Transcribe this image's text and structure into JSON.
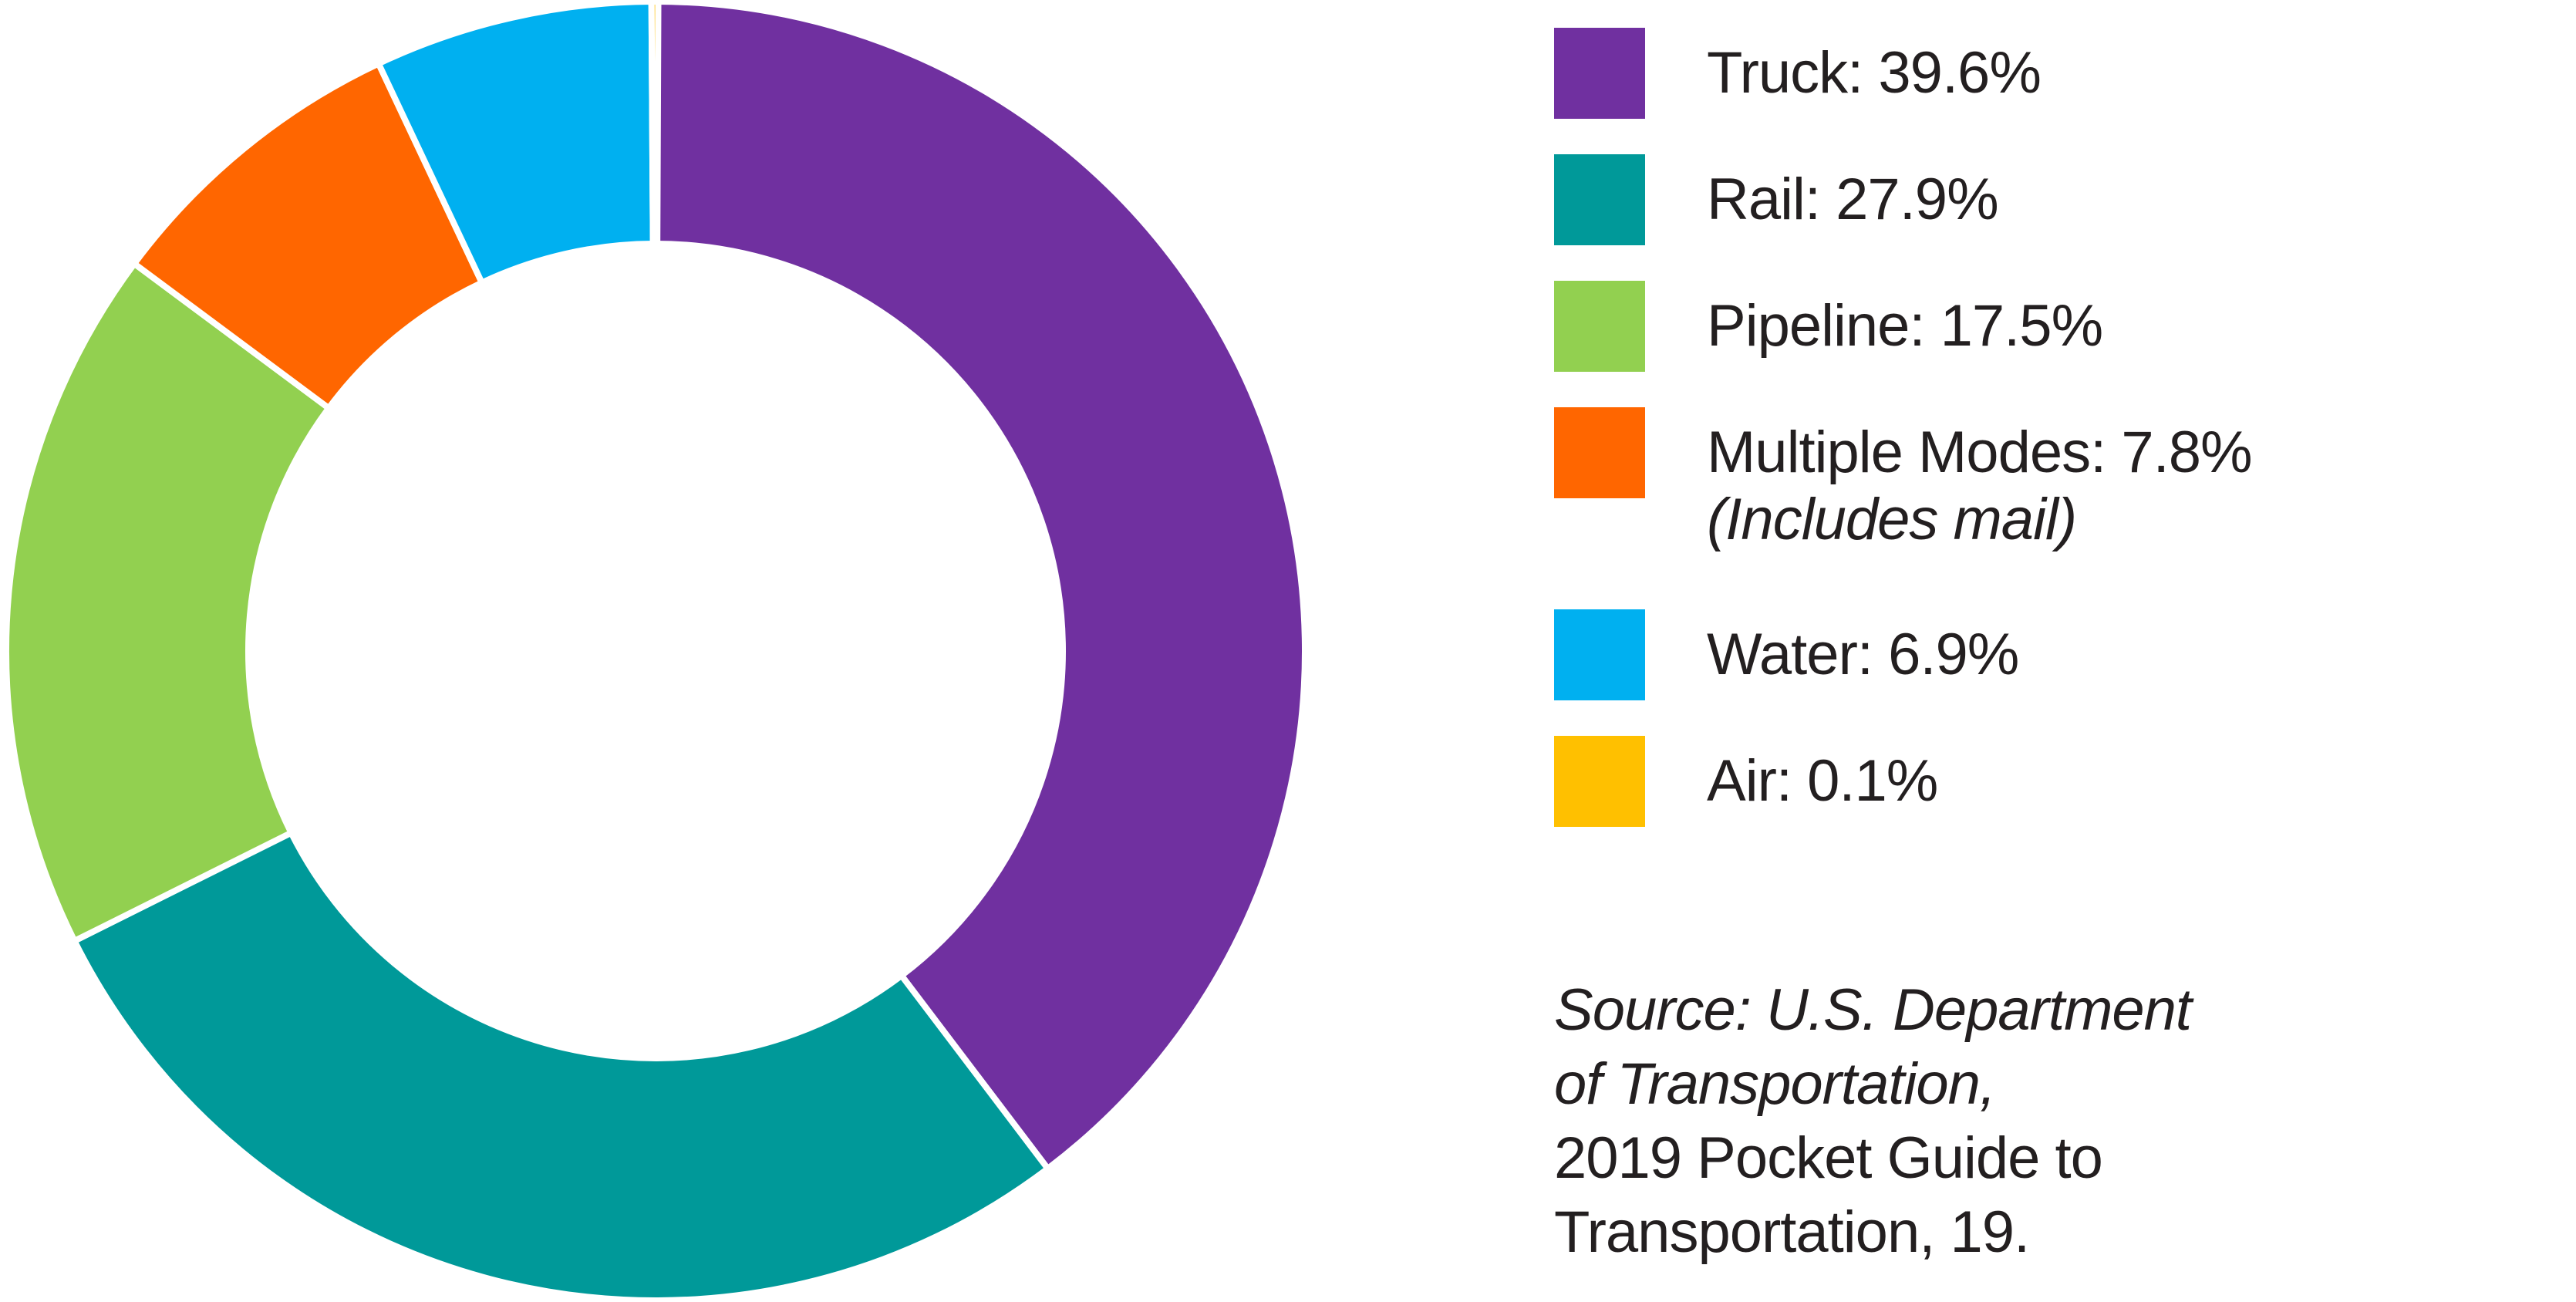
{
  "chart_data": {
    "type": "pie",
    "variant": "donut",
    "title": "",
    "categories": [
      "Truck",
      "Rail",
      "Pipeline",
      "Multiple Modes",
      "Water",
      "Air"
    ],
    "values": [
      39.6,
      27.9,
      17.5,
      7.8,
      6.9,
      0.1
    ],
    "unit": "%",
    "colors": [
      "#7030a0",
      "#009999",
      "#92d050",
      "#ff6600",
      "#00b0f0",
      "#ffc000"
    ],
    "start_angle_deg": 0,
    "direction": "clockwise",
    "legend_position": "right",
    "notes": {
      "Multiple Modes": "(Includes mail)"
    }
  },
  "legend": {
    "items": [
      {
        "label": "Truck: 39.6%",
        "color": "#7030a0"
      },
      {
        "label": "Rail: 27.9%",
        "color": "#009999"
      },
      {
        "label": "Pipeline: 17.5%",
        "color": "#92d050"
      },
      {
        "label": "Multiple Modes: 7.8%",
        "note": "(Includes mail)",
        "color": "#ff6600"
      },
      {
        "label": "Water: 6.9%",
        "color": "#00b0f0"
      },
      {
        "label": "Air: 0.1%",
        "color": "#ffc000"
      }
    ]
  },
  "source": {
    "line1": "Source: U.S. Department",
    "line2": "of Transportation,",
    "line3": "2019 Pocket Guide to",
    "line4": "Transportation, 19."
  }
}
